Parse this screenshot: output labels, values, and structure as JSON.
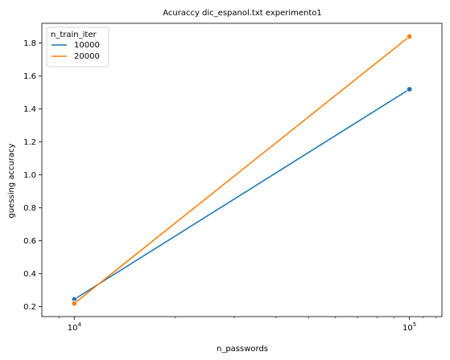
{
  "chart_data": {
    "type": "line",
    "title": "Acuraccy dic_espanol.txt experimento1",
    "xlabel": "n_passwords",
    "ylabel": "guessing accuracy",
    "x_scale": "log",
    "xlim": [
      8000,
      125000
    ],
    "ylim": [
      0.14,
      1.92
    ],
    "x_ticks": [
      10000,
      100000
    ],
    "x_tick_labels": [
      {
        "base": "10",
        "exp": "4"
      },
      {
        "base": "10",
        "exp": "5"
      }
    ],
    "y_ticks": [
      0.2,
      0.4,
      0.6,
      0.8,
      1.0,
      1.2,
      1.4,
      1.6,
      1.8
    ],
    "y_tick_labels": [
      "0.2",
      "0.4",
      "0.6",
      "0.8",
      "1.0",
      "1.2",
      "1.4",
      "1.6",
      "1.8"
    ],
    "grid": false,
    "legend": {
      "title": "n_train_iter",
      "placement": "top-left"
    },
    "series": [
      {
        "name": "10000",
        "color": "#1f77b4",
        "x": [
          10000,
          100000
        ],
        "y": [
          0.245,
          1.52
        ]
      },
      {
        "name": "20000",
        "color": "#ff7f0e",
        "x": [
          10000,
          100000
        ],
        "y": [
          0.22,
          1.84
        ]
      }
    ]
  }
}
